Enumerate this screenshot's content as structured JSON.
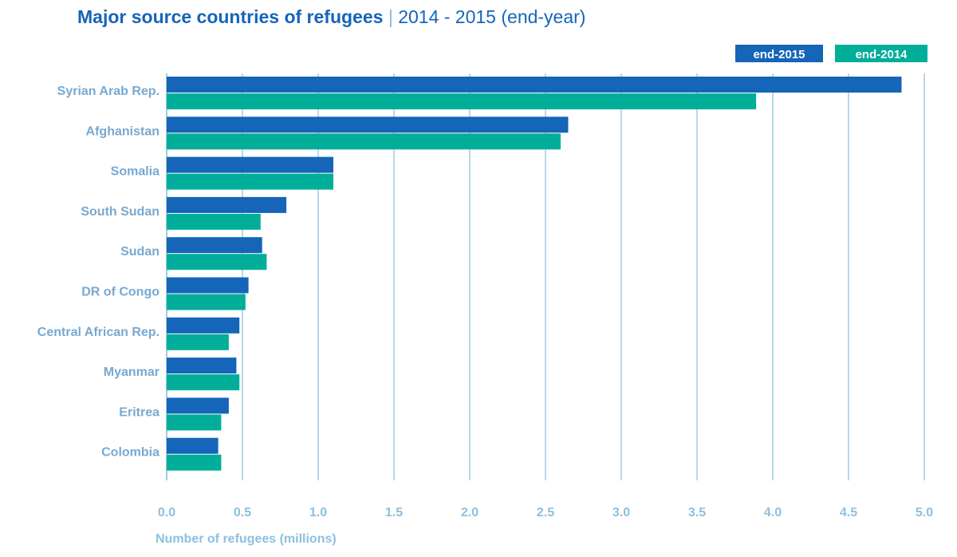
{
  "title": {
    "main": "Major source countries of refugees",
    "separator": "|",
    "sub": "2014 - 2015 (end-year)"
  },
  "colors": {
    "end2015": "#1565b8",
    "end2014": "#00ae9a",
    "grid": "#9fcbe6",
    "axis_text": "#8dbfe0",
    "category_text": "#78a9d0"
  },
  "chart_data": {
    "type": "bar",
    "orientation": "horizontal",
    "title": "Major source countries of refugees | 2014 - 2015 (end-year)",
    "xlabel": "Number of refugees (millions)",
    "ylabel": "",
    "xlim": [
      0,
      5
    ],
    "x_ticks": [
      "0.0",
      "0.5",
      "1.0",
      "1.5",
      "2.0",
      "2.5",
      "3.0",
      "3.5",
      "4.0",
      "4.5",
      "5.0"
    ],
    "grid": true,
    "legend_position": "top-right",
    "categories": [
      "Syrian Arab Rep.",
      "Afghanistan",
      "Somalia",
      "South Sudan",
      "Sudan",
      "DR of Congo",
      "Central African Rep.",
      "Myanmar",
      "Eritrea",
      "Colombia"
    ],
    "series": [
      {
        "name": "end-2015",
        "color": "#1565b8",
        "values": [
          4.85,
          2.65,
          1.1,
          0.79,
          0.63,
          0.54,
          0.48,
          0.46,
          0.41,
          0.34
        ]
      },
      {
        "name": "end-2014",
        "color": "#00ae9a",
        "values": [
          3.89,
          2.6,
          1.1,
          0.62,
          0.66,
          0.52,
          0.41,
          0.48,
          0.36,
          0.36
        ]
      }
    ]
  }
}
